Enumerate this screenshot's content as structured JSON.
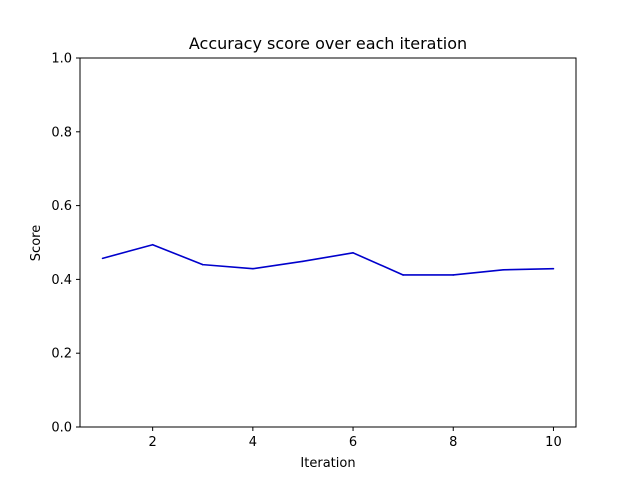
{
  "chart_data": {
    "type": "line",
    "title": "Accuracy score over each iteration",
    "xlabel": "Iteration",
    "ylabel": "Score",
    "xlim": [
      0.55,
      10.45
    ],
    "ylim": [
      0,
      1.0
    ],
    "xticks": [
      2,
      4,
      6,
      8,
      10
    ],
    "xtick_labels": [
      "2",
      "4",
      "6",
      "8",
      "10"
    ],
    "yticks": [
      0,
      0.2,
      0.4,
      0.6,
      0.8,
      1.0
    ],
    "ytick_labels": [
      "0.0",
      "0.2",
      "0.4",
      "0.6",
      "0.8",
      "1.0"
    ],
    "grid": false,
    "series": [
      {
        "color": "#0000cc",
        "x": [
          1,
          2,
          3,
          4,
          5,
          6,
          7,
          8,
          9,
          10
        ],
        "values": [
          0.457,
          0.494,
          0.44,
          0.429,
          0.449,
          0.472,
          0.412,
          0.412,
          0.426,
          0.429
        ]
      }
    ]
  }
}
